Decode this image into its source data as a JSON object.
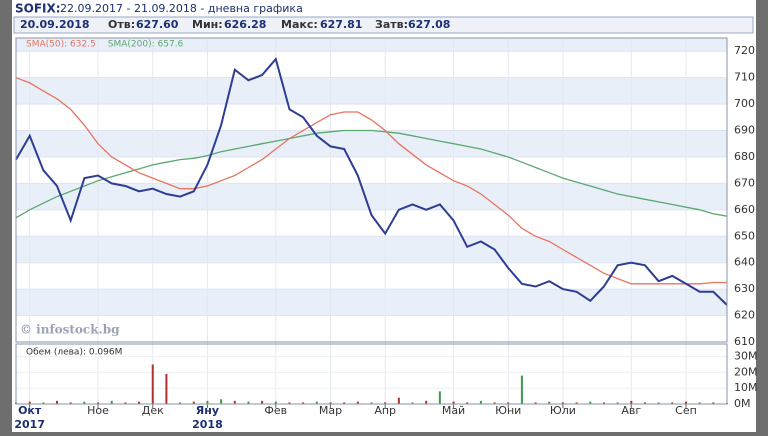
{
  "chart_data": {
    "type": "line",
    "symbol": "SOFIX:",
    "period": "22.09.2017 - 21.09.2018 - дневна графика",
    "quote": {
      "date": "20.09.2018",
      "open_label": "Отв:",
      "open": "627.60",
      "low_label": "Мин:",
      "low": "626.28",
      "high_label": "Макс:",
      "high": "627.81",
      "close_label": "Затв:",
      "close": "627.08"
    },
    "watermark": "© infostock.bg",
    "categories": [
      null,
      "Окт",
      null,
      null,
      null,
      null,
      "Ное",
      null,
      null,
      null,
      "Дек",
      null,
      null,
      null,
      "Яну",
      null,
      null,
      null,
      null,
      "Фев",
      null,
      null,
      null,
      "Мар",
      null,
      null,
      null,
      "Апр",
      null,
      null,
      null,
      null,
      "Май",
      null,
      null,
      null,
      "Юни",
      null,
      null,
      null,
      "Юли",
      null,
      null,
      null,
      null,
      "Авг",
      null,
      null,
      null,
      "Сеп",
      null,
      null,
      null
    ],
    "years": [
      {
        "index": 1,
        "label": "2017"
      },
      {
        "index": 14,
        "label": "2018"
      }
    ],
    "series": [
      {
        "color": "#2e3d94",
        "values": [
          679,
          688,
          675,
          669,
          656,
          672,
          673,
          670,
          669,
          667,
          668,
          666,
          665,
          667,
          677,
          692,
          713,
          709,
          711,
          717,
          698,
          695,
          688,
          684,
          683,
          673,
          658,
          651,
          660,
          662,
          660,
          662,
          656,
          646,
          648,
          645,
          638,
          632,
          631,
          633,
          630,
          629,
          625.6,
          631,
          639,
          640,
          639,
          633,
          635,
          632,
          629,
          629,
          624
        ]
      },
      {
        "name": "SMA(50): 632.5",
        "color": "#e8735f",
        "values": [
          710,
          708,
          705,
          702,
          698,
          692,
          685,
          680,
          677,
          674,
          672,
          670,
          668,
          668,
          669,
          671,
          673,
          676,
          679,
          683,
          687,
          690,
          693,
          696,
          697,
          697,
          694,
          690,
          685,
          681,
          677,
          674,
          671,
          669,
          666,
          662,
          658,
          653,
          650,
          648,
          645,
          642,
          639,
          636,
          634,
          632,
          632,
          632,
          632,
          632,
          632,
          632.5,
          632.5
        ]
      },
      {
        "name": "SMA(200): 657.6",
        "color": "#5aa870",
        "values": [
          657,
          660,
          662.5,
          665,
          667,
          669,
          671,
          672.5,
          674,
          675.5,
          677,
          678,
          679,
          679.5,
          680.5,
          682,
          683,
          684,
          685,
          686,
          687,
          688,
          689,
          689.5,
          690,
          690,
          690,
          689.5,
          689,
          688,
          687,
          686,
          685,
          684,
          683,
          681.5,
          680,
          678,
          676,
          674,
          672,
          670.5,
          669,
          667.5,
          666,
          665,
          664,
          663,
          662,
          661,
          660,
          658.5,
          657.6
        ]
      }
    ],
    "ylim": [
      610,
      725
    ],
    "yticks": [
      610,
      620,
      630,
      640,
      650,
      660,
      670,
      680,
      690,
      700,
      710,
      720
    ],
    "volume": {
      "title": "Обем (лева): 0.096M",
      "values": [
        1,
        1.5,
        1,
        2,
        1,
        1.5,
        1,
        2,
        1,
        1.5,
        25,
        19,
        1,
        1.5,
        2,
        3,
        2,
        1.5,
        2,
        1.5,
        1,
        1,
        1.5,
        1,
        1,
        1.5,
        1,
        1,
        4,
        1,
        2,
        8,
        1.5,
        1,
        2,
        1,
        1,
        18,
        1,
        1.5,
        1,
        1,
        1.5,
        1,
        1,
        2,
        1,
        1,
        1,
        1.5,
        1,
        1,
        0.5
      ],
      "color": "#b03030",
      "up_color": "#3a9a4a",
      "up": [
        1,
        0,
        1,
        0,
        0,
        1,
        0,
        1,
        0,
        0,
        0,
        0,
        1,
        0,
        1,
        1,
        0,
        1,
        0,
        1,
        0,
        0,
        1,
        0,
        0,
        0,
        1,
        0,
        0,
        1,
        0,
        1,
        0,
        0,
        1,
        0,
        0,
        1,
        0,
        1,
        0,
        0,
        1,
        0,
        1,
        0,
        0,
        1,
        0,
        0,
        1,
        0,
        0
      ],
      "ylim": [
        0,
        38
      ],
      "yticks": [
        {
          "value": 0,
          "label": "0M"
        },
        {
          "value": 10,
          "label": "10M"
        },
        {
          "value": 20,
          "label": "20M"
        },
        {
          "value": 30,
          "label": "30M"
        }
      ]
    }
  }
}
